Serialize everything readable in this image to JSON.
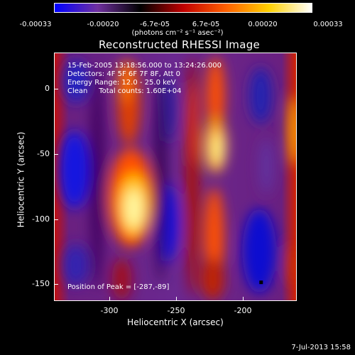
{
  "colorbar": {
    "ticks": [
      "-0.00033",
      "-0.00020",
      "-6.7e-05",
      "6.7e-05",
      "0.00020",
      "0.00033"
    ],
    "units": "(photons cm⁻² s⁻¹ asec⁻²)",
    "colors": [
      "#0000ff",
      "#7030a0",
      "#000000",
      "#c00000",
      "#ff6000",
      "#ffd000",
      "#ffffff"
    ]
  },
  "title": "Reconstructed RHESSI Image",
  "info": {
    "line1": "15-Feb-2005 13:18:56.000 to 13:24:26.000",
    "line2": "Detectors: 4F 5F 6F 7F 8F, Att 0",
    "line3": "Energy Range: 12.0 - 25.0 keV",
    "line4": "Clean     Total counts: 1.60E+04"
  },
  "peak_label": "Position of Peak = [-287,-89]",
  "axes": {
    "xlabel": "Heliocentric X (arcsec)",
    "ylabel": "Heliocentric Y (arcsec)",
    "xticks": [
      "-300",
      "-250",
      "-200"
    ],
    "yticks": [
      "0",
      "-50",
      "-100",
      "-150"
    ]
  },
  "timestamp": "7-Jul-2013 15:58"
}
